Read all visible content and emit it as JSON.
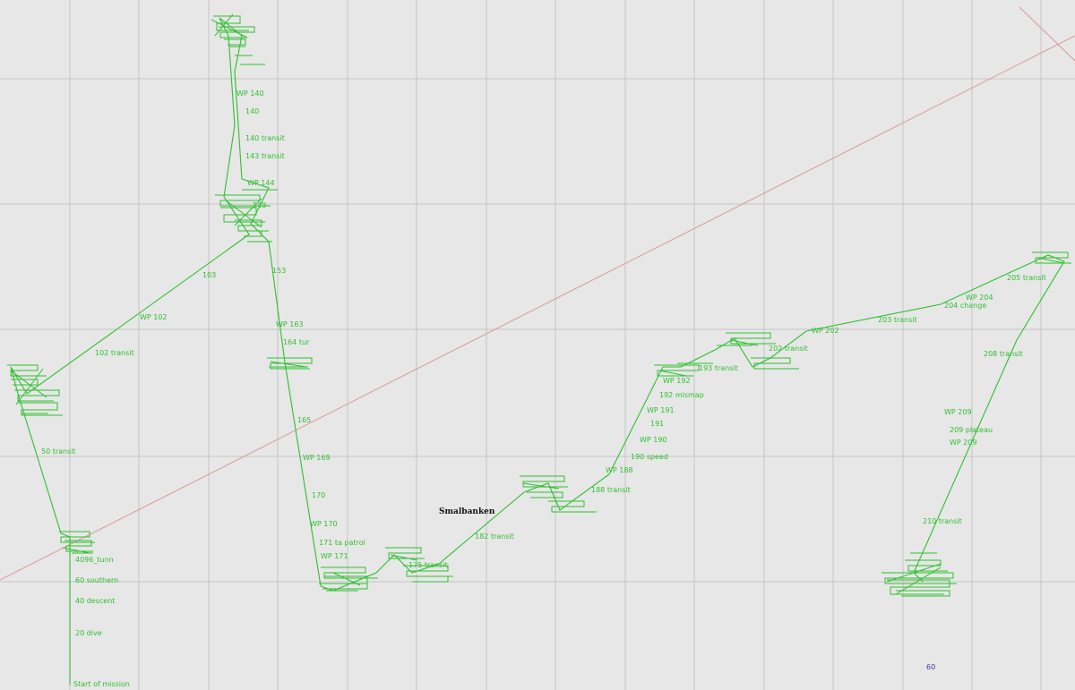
{
  "map": {
    "colors": {
      "background": "#e7e7e7",
      "grid": "#c4c4c4",
      "track": "#2fbf2f",
      "waypoint_text": "#2fbf2f",
      "boundary": "#d89a9a"
    },
    "place_name": "Smalbanken",
    "corner_marker": "60",
    "waypoint_labels": [
      "Start of mission",
      "20 dive",
      "40 descent",
      "60 southern",
      "4096_tunn",
      "50 transit",
      "102 transit",
      "WP 102",
      "103",
      "WP 140",
      "140",
      "140 transit",
      "143 transit",
      "WP 144",
      "149",
      "153",
      "WP 163",
      "164 tur",
      "165",
      "WP 169",
      "170",
      "WP 170",
      "171 ta patrol",
      "WP 171",
      "175 transit",
      "182 transit",
      "188 transit",
      "WP 188",
      "190 speed",
      "WP 190",
      "191",
      "WP 191",
      "192 mismap",
      "WP 192",
      "193 transit",
      "202 transit",
      "WP 202",
      "203 transit",
      "WP 204",
      "204 change",
      "205 transit",
      "208 transit",
      "WP 209",
      "209 plateau",
      "WP 209",
      "210 transit"
    ]
  }
}
